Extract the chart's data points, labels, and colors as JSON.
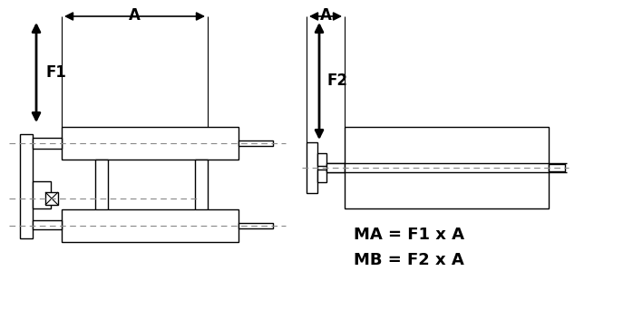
{
  "bg_color": "#ffffff",
  "line_color": "#000000",
  "dash_color": "#888888",
  "text_color": "#000000",
  "figsize": [
    6.98,
    3.42
  ],
  "dpi": 100,
  "formula1": "MA = F1 x A",
  "formula2": "MB = F2 x A",
  "label_A": "A",
  "label_F1": "F1",
  "label_F2": "F2"
}
